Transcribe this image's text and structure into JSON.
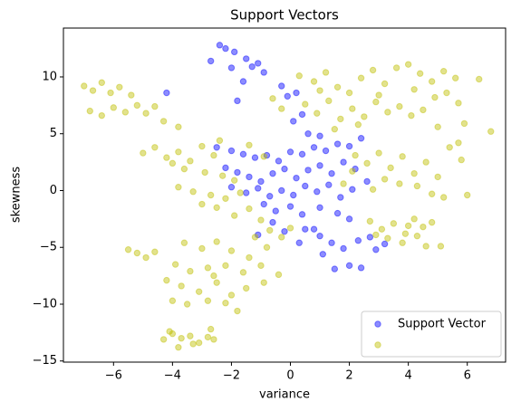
{
  "chart_data": {
    "type": "scatter",
    "title": "Support Vectors",
    "x_label": "variance",
    "y_label": "skewness",
    "xlim": [
      -7.7,
      7.3
    ],
    "ylim": [
      -15.1,
      14.3
    ],
    "xticks": [
      {
        "value": -6,
        "label": "−6"
      },
      {
        "value": -4,
        "label": "−4"
      },
      {
        "value": -2,
        "label": "−2"
      },
      0,
      2,
      4,
      6
    ],
    "yticks": [
      {
        "value": -15,
        "label": "−15"
      },
      {
        "value": -10,
        "label": "−10"
      },
      {
        "value": -5,
        "label": "−5"
      },
      0,
      5,
      10
    ],
    "legend": "lower right",
    "alpha": 0.45,
    "series": [
      {
        "name": "Support Vector",
        "color": "#0000ff",
        "x": [
          -2.4,
          -2.2,
          -1.9,
          -1.5,
          -1.1,
          -2.7,
          -2.0,
          -1.3,
          -0.9,
          -1.6,
          -0.3,
          -0.1,
          0.2,
          -4.2,
          -1.8,
          0.4,
          0.1,
          -2.5,
          -2.0,
          -1.6,
          -1.2,
          -0.8,
          -0.4,
          0.0,
          0.4,
          0.8,
          1.2,
          1.6,
          2.0,
          2.4,
          1.0,
          0.6,
          -2.2,
          -1.8,
          -1.4,
          -1.0,
          -0.6,
          -0.2,
          0.2,
          0.6,
          1.0,
          1.4,
          1.8,
          2.2,
          2.6,
          -2.0,
          -1.5,
          -1.1,
          -0.7,
          -0.3,
          0.1,
          0.5,
          0.9,
          1.3,
          1.7,
          2.1,
          -0.9,
          -0.5,
          0.0,
          0.4,
          1.0,
          1.6,
          2.0,
          -0.6,
          0.8,
          0.3,
          0.5,
          1.0,
          1.4,
          1.8,
          2.3,
          2.7,
          1.1,
          1.5,
          2.0,
          2.4,
          2.9,
          3.2,
          -0.2,
          -1.1
        ],
        "values": [
          12.8,
          12.5,
          12.2,
          11.6,
          11.2,
          11.4,
          10.8,
          10.9,
          10.4,
          9.6,
          9.2,
          8.3,
          8.6,
          8.6,
          7.9,
          6.7,
          6.1,
          3.8,
          3.5,
          3.2,
          2.9,
          3.1,
          2.6,
          3.4,
          3.2,
          3.8,
          3.5,
          4.1,
          3.9,
          4.6,
          4.8,
          5.0,
          2.0,
          1.6,
          1.2,
          0.8,
          1.5,
          1.9,
          1.1,
          1.8,
          2.2,
          1.5,
          2.5,
          1.9,
          0.8,
          0.3,
          -0.2,
          0.2,
          -0.5,
          0.0,
          -0.4,
          0.4,
          -0.1,
          0.5,
          -0.6,
          0.1,
          -1.2,
          -1.8,
          -1.4,
          -2.1,
          -1.5,
          -2.0,
          -2.5,
          -2.8,
          -3.4,
          -4.6,
          -3.4,
          -4.0,
          -4.6,
          -5.1,
          -4.4,
          -4.1,
          -5.6,
          -6.9,
          -6.6,
          -6.8,
          -5.2,
          -4.7,
          -3.6,
          -3.9
        ]
      },
      {
        "color": "#bfbf00",
        "x": [
          0.3,
          0.8,
          1.2,
          1.6,
          2.0,
          2.4,
          2.8,
          3.2,
          3.6,
          4.0,
          4.4,
          4.8,
          5.2,
          5.6,
          6.4,
          0.5,
          0.9,
          1.3,
          1.7,
          2.1,
          2.5,
          2.9,
          3.3,
          3.7,
          4.1,
          4.5,
          4.9,
          5.3,
          5.7,
          5.9,
          1.0,
          3.0,
          4.2,
          -0.6,
          -0.3,
          5.0,
          1.5,
          2.3,
          -7.0,
          -6.7,
          -6.4,
          -6.1,
          -5.8,
          -5.4,
          -6.8,
          -6.4,
          -6.0,
          -5.6,
          -5.2,
          -4.9,
          -4.6,
          -4.3,
          -3.8,
          -5.0,
          -4.6,
          -4.2,
          -3.8,
          -3.4,
          -3.0,
          -2.6,
          -4.0,
          -3.6,
          -2.9,
          -2.3,
          -1.9,
          -3.8,
          -3.3,
          -2.7,
          -2.2,
          -1.7,
          -3.0,
          -2.5,
          -1.9,
          -1.4,
          -1.0,
          -2.4,
          -1.4,
          -0.9,
          2.2,
          2.6,
          3.0,
          3.4,
          3.8,
          4.2,
          4.6,
          5.0,
          5.4,
          5.8,
          3.2,
          3.7,
          4.3,
          4.8,
          5.2,
          6.0,
          2.8,
          2.1,
          1.8,
          5.7,
          2.7,
          3.1,
          3.5,
          3.9,
          4.2,
          4.5,
          4.8,
          3.3,
          3.8,
          4.3,
          4.6,
          5.1,
          2.9,
          4.0,
          -3.6,
          -3.0,
          -2.5,
          -2.0,
          -1.4,
          -0.8,
          -0.3,
          0.0,
          -0.7,
          -3.9,
          -3.4,
          -2.8,
          -2.2,
          -1.6,
          -1.0,
          -2.6,
          -4.2,
          -3.7,
          -3.1,
          -2.5,
          -2.0,
          -1.5,
          -4.0,
          -3.5,
          -2.8,
          -2.2,
          -1.8,
          -0.9,
          -0.4,
          -1.2,
          -5.5,
          -5.2,
          -4.9,
          -4.6,
          -4.3,
          -4.0,
          -3.7,
          -3.4,
          -3.1,
          -2.8,
          -3.8,
          -4.1,
          -2.6,
          -3.3,
          -2.7,
          6.8
        ],
        "values": [
          10.1,
          9.6,
          10.4,
          9.1,
          8.6,
          9.9,
          10.6,
          9.4,
          10.8,
          11.1,
          10.3,
          9.6,
          10.5,
          9.9,
          9.8,
          7.6,
          6.8,
          7.9,
          6.3,
          7.2,
          6.5,
          7.8,
          6.9,
          7.4,
          6.6,
          7.1,
          8.2,
          8.6,
          7.7,
          5.9,
          8.8,
          8.4,
          8.9,
          8.1,
          7.2,
          5.6,
          5.4,
          5.8,
          9.2,
          8.8,
          9.5,
          8.6,
          9.1,
          8.4,
          7.0,
          6.6,
          7.3,
          6.9,
          7.5,
          6.8,
          7.4,
          6.1,
          5.6,
          3.3,
          3.8,
          2.9,
          3.4,
          2.6,
          3.9,
          3.1,
          2.4,
          1.9,
          1.6,
          1.3,
          0.9,
          0.3,
          -0.1,
          -0.4,
          -0.7,
          -0.2,
          -1.2,
          -1.5,
          -2.2,
          -1.6,
          -2.6,
          4.4,
          4.0,
          3.0,
          3.1,
          2.4,
          3.3,
          2.0,
          3.0,
          1.5,
          2.5,
          1.2,
          3.8,
          2.7,
          1.0,
          0.6,
          0.4,
          -0.3,
          -0.6,
          -0.4,
          0.1,
          1.7,
          0.6,
          4.2,
          -2.7,
          -3.4,
          -2.9,
          -3.8,
          -2.5,
          -3.2,
          -2.8,
          -4.2,
          -4.6,
          -4.0,
          -4.9,
          -4.9,
          -3.9,
          -3.1,
          -4.6,
          -5.1,
          -4.5,
          -5.3,
          -5.9,
          -5.0,
          -4.1,
          -3.3,
          -3.5,
          -6.5,
          -7.1,
          -6.8,
          -6.6,
          -7.2,
          -6.6,
          -7.5,
          -7.9,
          -8.4,
          -8.9,
          -8.1,
          -9.2,
          -8.6,
          -9.7,
          -10.0,
          -9.7,
          -9.9,
          -10.6,
          -8.1,
          -7.4,
          -4.1,
          -5.2,
          -5.5,
          -5.9,
          -5.4,
          -13.1,
          -12.6,
          -13.0,
          -12.8,
          -13.4,
          -12.9,
          -13.8,
          -12.4,
          -13.1,
          -13.5,
          -12.2,
          5.2
        ]
      }
    ]
  }
}
